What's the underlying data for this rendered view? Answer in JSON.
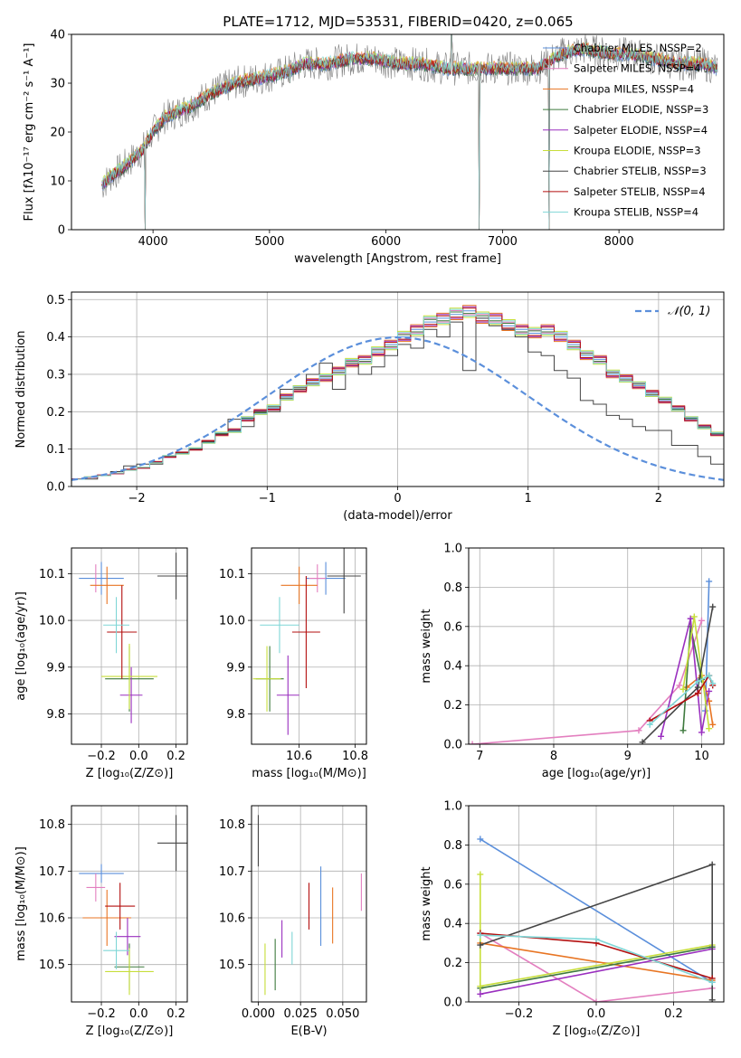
{
  "figure_title": "PLATE=1712, MJD=53531, FIBERID=0420, z=0.065",
  "colors": {
    "Chabrier MILES": "#5b8fdb",
    "Salpeter MILES": "#e37fbf",
    "Kroupa MILES": "#e87523",
    "Chabrier ELODIE": "#3e7a3e",
    "Salpeter ELODIE": "#9a2fbf",
    "Kroupa ELODIE": "#c7de3a",
    "Chabrier STELIB": "#454545",
    "Salpeter STELIB": "#b30f0f",
    "Kroupa STELIB": "#7fd6d6"
  },
  "chart_data": [
    {
      "id": "spectrum",
      "type": "line",
      "title": "PLATE=1712, MJD=53531, FIBERID=0420, z=0.065",
      "xlabel": "wavelength [Angstrom, rest frame]",
      "ylabel": "Flux [fλ10⁻¹⁷ erg cm⁻² s⁻¹ A⁻¹]",
      "xlim": [
        3300,
        8900
      ],
      "ylim": [
        0,
        40
      ],
      "xticks": [
        4000,
        5000,
        6000,
        7000,
        8000
      ],
      "yticks": [
        0,
        10,
        20,
        30,
        40
      ],
      "grid": false,
      "legend_position": "right",
      "legend": [
        "Chabrier MILES, N<sub>SSP</sub>=2",
        "Salpeter MILES, N<sub>SSP</sub>=4",
        "Kroupa MILES, N<sub>SSP</sub>=4",
        "Chabrier ELODIE, N<sub>SSP</sub>=3",
        "Salpeter ELODIE, N<sub>SSP</sub>=4",
        "Kroupa ELODIE, N<sub>SSP</sub>=3",
        "Chabrier STELIB, N<sub>SSP</sub>=3",
        "Salpeter STELIB, N<sub>SSP</sub>=4",
        "Kroupa STELIB, N<sub>SSP</sub>=4"
      ],
      "data_color": "#808080",
      "continuum": {
        "x": [
          3560,
          3640,
          3700,
          3800,
          3900,
          4000,
          4100,
          4200,
          4300,
          4500,
          4700,
          4900,
          5100,
          5300,
          5500,
          5700,
          5900,
          6100,
          6300,
          6500,
          6700,
          6900,
          7100,
          7300,
          7500,
          7700,
          7900,
          8100,
          8300,
          8500,
          8700,
          8850
        ],
        "y": [
          9,
          11,
          12,
          14,
          16,
          20,
          23,
          24,
          25,
          28,
          30,
          31,
          32,
          34,
          34,
          35,
          35,
          34,
          34,
          33,
          33,
          33,
          33,
          33,
          36,
          37,
          36,
          36,
          35,
          34,
          34,
          33
        ]
      },
      "features": [
        {
          "x": 3934,
          "y": 0
        },
        {
          "x": 5175,
          "y": 30
        },
        {
          "x": 6563,
          "y": 40
        },
        {
          "x": 6800,
          "y": 0
        },
        {
          "x": 7400,
          "y": 0
        }
      ]
    },
    {
      "id": "residuals",
      "type": "histogram",
      "xlabel": "(data-model)/error",
      "ylabel": "Normed distribution",
      "xlim": [
        -2.5,
        2.5
      ],
      "ylim": [
        0,
        0.52
      ],
      "xticks": [
        -2,
        -1,
        0,
        1,
        2
      ],
      "yticks": [
        0.0,
        0.1,
        0.2,
        0.3,
        0.4,
        0.5
      ],
      "tick_labels_x": [
        "−2",
        "−1",
        "0",
        "1",
        "2"
      ],
      "grid": true,
      "legend_position": "top-right",
      "legend": [
        "𝒩(0, 1)"
      ],
      "normal_curve": {
        "mean": 0,
        "sd": 1,
        "color": "#5b8fdb"
      },
      "bins": {
        "start": -2.5,
        "width": 0.1
      },
      "series_histograms": {
        "Chabrier MILES": [
          0.02,
          0.025,
          0.03,
          0.035,
          0.045,
          0.05,
          0.065,
          0.08,
          0.09,
          0.1,
          0.12,
          0.14,
          0.15,
          0.18,
          0.2,
          0.21,
          0.24,
          0.26,
          0.28,
          0.29,
          0.31,
          0.33,
          0.34,
          0.36,
          0.38,
          0.4,
          0.42,
          0.44,
          0.45,
          0.46,
          0.47,
          0.45,
          0.45,
          0.43,
          0.42,
          0.41,
          0.42,
          0.4,
          0.38,
          0.35,
          0.34,
          0.3,
          0.29,
          0.27,
          0.25,
          0.23,
          0.21,
          0.18,
          0.16,
          0.14,
          0.12,
          0.11,
          0.09,
          0.08,
          0.07,
          0.06,
          0.05,
          0.04,
          0.03,
          0.03
        ],
        "Chabrier STELIB": [
          0.02,
          0.02,
          0.03,
          0.04,
          0.055,
          0.06,
          0.06,
          0.08,
          0.09,
          0.1,
          0.12,
          0.14,
          0.18,
          0.16,
          0.2,
          0.2,
          0.26,
          0.26,
          0.3,
          0.33,
          0.26,
          0.33,
          0.3,
          0.32,
          0.35,
          0.38,
          0.37,
          0.42,
          0.4,
          0.44,
          0.31,
          0.45,
          0.43,
          0.42,
          0.4,
          0.36,
          0.35,
          0.31,
          0.29,
          0.23,
          0.22,
          0.19,
          0.18,
          0.16,
          0.15,
          0.15,
          0.11,
          0.11,
          0.08,
          0.06,
          0.06,
          0.05,
          0.04,
          0.03,
          0.03,
          0.03,
          0.03,
          0.02,
          0.02,
          0.02
        ]
      },
      "series_shift": {
        "Salpeter MILES": 0.015,
        "Kroupa MILES": -0.02,
        "Chabrier ELODIE": 0.01,
        "Salpeter ELODIE": -0.015,
        "Kroupa ELODIE": 0.025,
        "Salpeter STELIB": -0.01,
        "Kroupa STELIB": 0.02
      }
    },
    {
      "id": "age-vs-Z",
      "type": "scatter-errorbars",
      "xlabel": "Z [log₁₀(Z/Z⊙)]",
      "ylabel": "age  [log₁₀(age/yr)]",
      "xlim": [
        -0.36,
        0.26
      ],
      "ylim": [
        9.735,
        10.155
      ],
      "xticks": [
        -0.2,
        0.0,
        0.2
      ],
      "tick_labels_x": [
        "−0.2",
        "0.0",
        "0.2"
      ],
      "yticks": [
        9.8,
        9.9,
        10.0,
        10.1
      ],
      "grid": true,
      "points": [
        {
          "s": "Chabrier MILES",
          "x": -0.2,
          "y": 10.09,
          "xerr": 0.12,
          "yerr": 0.035
        },
        {
          "s": "Salpeter MILES",
          "x": -0.23,
          "y": 10.09,
          "xerr": 0.0,
          "yerr": 0.03
        },
        {
          "s": "Kroupa MILES",
          "x": -0.17,
          "y": 10.075,
          "xerr": 0.09,
          "yerr": 0.04
        },
        {
          "s": "Chabrier ELODIE",
          "x": -0.05,
          "y": 9.875,
          "xerr": 0.13,
          "yerr": 0.07
        },
        {
          "s": "Salpeter ELODIE",
          "x": -0.04,
          "y": 9.84,
          "xerr": 0.06,
          "yerr": 0.06
        },
        {
          "s": "Kroupa ELODIE",
          "x": -0.05,
          "y": 9.88,
          "xerr": 0.15,
          "yerr": 0.07
        },
        {
          "s": "Chabrier STELIB",
          "x": 0.2,
          "y": 10.095,
          "xerr": 0.1,
          "yerr": 0.05
        },
        {
          "s": "Salpeter STELIB",
          "x": -0.09,
          "y": 9.975,
          "xerr": 0.08,
          "yerr": 0.1
        },
        {
          "s": "Kroupa STELIB",
          "x": -0.12,
          "y": 9.99,
          "xerr": 0.07,
          "yerr": 0.06
        }
      ]
    },
    {
      "id": "age-vs-mass",
      "type": "scatter-errorbars",
      "xlabel": "mass [log₁₀(M/M⊙)]",
      "ylabel": "",
      "xlim": [
        10.43,
        10.84
      ],
      "ylim": [
        9.735,
        10.155
      ],
      "xticks": [
        10.6,
        10.8
      ],
      "yticks": [
        9.8,
        9.9,
        10.0,
        10.1
      ],
      "grid": true,
      "points": [
        {
          "s": "Chabrier MILES",
          "x": 10.695,
          "y": 10.09,
          "xerr": 0.07,
          "yerr": 0.035
        },
        {
          "s": "Salpeter MILES",
          "x": 10.665,
          "y": 10.09,
          "xerr": 0.03,
          "yerr": 0.03
        },
        {
          "s": "Kroupa MILES",
          "x": 10.6,
          "y": 10.075,
          "xerr": 0.065,
          "yerr": 0.04
        },
        {
          "s": "Chabrier ELODIE",
          "x": 10.495,
          "y": 9.875,
          "xerr": 0.05,
          "yerr": 0.07
        },
        {
          "s": "Salpeter ELODIE",
          "x": 10.56,
          "y": 9.84,
          "xerr": 0.04,
          "yerr": 0.085
        },
        {
          "s": "Kroupa ELODIE",
          "x": 10.485,
          "y": 9.875,
          "xerr": 0.05,
          "yerr": 0.07
        },
        {
          "s": "Chabrier STELIB",
          "x": 10.76,
          "y": 10.095,
          "xerr": 0.06,
          "yerr": 0.08
        },
        {
          "s": "Salpeter STELIB",
          "x": 10.625,
          "y": 9.975,
          "xerr": 0.05,
          "yerr": 0.12
        },
        {
          "s": "Kroupa STELIB",
          "x": 10.53,
          "y": 9.99,
          "xerr": 0.07,
          "yerr": 0.06
        }
      ]
    },
    {
      "id": "massweight-vs-age",
      "type": "line",
      "xlabel": "age  [log₁₀(age/yr)]",
      "ylabel": "mass weight",
      "xlim": [
        6.85,
        10.3
      ],
      "ylim": [
        0,
        1
      ],
      "xticks": [
        7,
        8,
        9,
        10
      ],
      "yticks": [
        0.0,
        0.2,
        0.4,
        0.6,
        0.8,
        1.0
      ],
      "grid": true,
      "series": [
        {
          "name": "Chabrier MILES",
          "x": [
            10.05,
            10.1
          ],
          "y": [
            0.17,
            0.83
          ]
        },
        {
          "name": "Salpeter MILES",
          "x": [
            6.9,
            9.15,
            9.7,
            10.0
          ],
          "y": [
            0.0,
            0.07,
            0.3,
            0.63
          ]
        },
        {
          "name": "Kroupa MILES",
          "x": [
            9.8,
            10.0,
            10.1,
            10.15
          ],
          "y": [
            0.29,
            0.35,
            0.22,
            0.1
          ]
        },
        {
          "name": "Chabrier ELODIE",
          "x": [
            9.75,
            9.85,
            10.0
          ],
          "y": [
            0.07,
            0.6,
            0.33
          ]
        },
        {
          "name": "Salpeter ELODIE",
          "x": [
            9.45,
            9.85,
            10.0,
            10.1
          ],
          "y": [
            0.04,
            0.64,
            0.06,
            0.27
          ]
        },
        {
          "name": "Kroupa ELODIE",
          "x": [
            9.75,
            9.9,
            10.1
          ],
          "y": [
            0.28,
            0.65,
            0.08
          ]
        },
        {
          "name": "Chabrier STELIB",
          "x": [
            9.2,
            9.95,
            10.15
          ],
          "y": [
            0.01,
            0.29,
            0.7
          ]
        },
        {
          "name": "Salpeter STELIB",
          "x": [
            9.3,
            9.95,
            10.1,
            10.15
          ],
          "y": [
            0.12,
            0.26,
            0.35,
            0.3
          ]
        },
        {
          "name": "Kroupa STELIB",
          "x": [
            9.3,
            9.95,
            10.1,
            10.15
          ],
          "y": [
            0.1,
            0.32,
            0.35,
            0.31
          ]
        }
      ]
    },
    {
      "id": "mass-vs-Z",
      "type": "scatter-errorbars",
      "xlabel": "Z [log₁₀(Z/Z⊙)]",
      "ylabel": "mass [log₁₀(M/M⊙)]",
      "xlim": [
        -0.36,
        0.26
      ],
      "ylim": [
        10.42,
        10.84
      ],
      "xticks": [
        -0.2,
        0.0,
        0.2
      ],
      "tick_labels_x": [
        "−0.2",
        "0.0",
        "0.2"
      ],
      "yticks": [
        10.5,
        10.6,
        10.7,
        10.8
      ],
      "grid": true,
      "points": [
        {
          "s": "Chabrier MILES",
          "x": -0.2,
          "y": 10.695,
          "xerr": 0.12,
          "yerr": 0.02
        },
        {
          "s": "Salpeter MILES",
          "x": -0.23,
          "y": 10.665,
          "xerr": 0.05,
          "yerr": 0.03
        },
        {
          "s": "Kroupa MILES",
          "x": -0.17,
          "y": 10.6,
          "xerr": 0.13,
          "yerr": 0.06
        },
        {
          "s": "Chabrier ELODIE",
          "x": -0.05,
          "y": 10.495,
          "xerr": 0.08,
          "yerr": 0.05
        },
        {
          "s": "Salpeter ELODIE",
          "x": -0.06,
          "y": 10.56,
          "xerr": 0.07,
          "yerr": 0.04
        },
        {
          "s": "Kroupa ELODIE",
          "x": -0.05,
          "y": 10.485,
          "xerr": 0.13,
          "yerr": 0.05
        },
        {
          "s": "Chabrier STELIB",
          "x": 0.2,
          "y": 10.76,
          "xerr": 0.1,
          "yerr": 0.06
        },
        {
          "s": "Salpeter STELIB",
          "x": -0.1,
          "y": 10.625,
          "xerr": 0.08,
          "yerr": 0.05
        },
        {
          "s": "Kroupa STELIB",
          "x": -0.12,
          "y": 10.53,
          "xerr": 0.07,
          "yerr": 0.04
        }
      ]
    },
    {
      "id": "mass-vs-ebv",
      "type": "scatter-errorbars",
      "xlabel": "E(B-V)",
      "ylabel": "",
      "xlim": [
        -0.004,
        0.064
      ],
      "ylim": [
        10.42,
        10.84
      ],
      "xticks": [
        0.0,
        0.025,
        0.05
      ],
      "tick_labels_x": [
        "0.000",
        "0.025",
        "0.050"
      ],
      "yticks": [
        10.5,
        10.6,
        10.7,
        10.8
      ],
      "grid": true,
      "points": [
        {
          "s": "Chabrier STELIB",
          "x": 0.0,
          "y": 10.765,
          "xerr": 0,
          "yerr": 0.055
        },
        {
          "s": "Kroupa ELODIE",
          "x": 0.004,
          "y": 10.49,
          "xerr": 0,
          "yerr": 0.055
        },
        {
          "s": "Chabrier ELODIE",
          "x": 0.01,
          "y": 10.5,
          "xerr": 0,
          "yerr": 0.055
        },
        {
          "s": "Salpeter ELODIE",
          "x": 0.014,
          "y": 10.555,
          "xerr": 0,
          "yerr": 0.04
        },
        {
          "s": "Kroupa STELIB",
          "x": 0.02,
          "y": 10.535,
          "xerr": 0,
          "yerr": 0.035
        },
        {
          "s": "Salpeter STELIB",
          "x": 0.03,
          "y": 10.625,
          "xerr": 0,
          "yerr": 0.05
        },
        {
          "s": "Chabrier MILES",
          "x": 0.037,
          "y": 10.625,
          "xerr": 0,
          "yerr": 0.085
        },
        {
          "s": "Kroupa MILES",
          "x": 0.044,
          "y": 10.605,
          "xerr": 0,
          "yerr": 0.06
        },
        {
          "s": "Salpeter MILES",
          "x": 0.061,
          "y": 10.655,
          "xerr": 0,
          "yerr": 0.04
        }
      ]
    },
    {
      "id": "massweight-vs-Z",
      "type": "line",
      "xlabel": "Z [log₁₀(Z/Z⊙)]",
      "ylabel": "mass weight",
      "xlim": [
        -0.33,
        0.33
      ],
      "ylim": [
        0,
        1
      ],
      "xticks": [
        -0.2,
        0.0,
        0.2
      ],
      "tick_labels_x": [
        "−0.2",
        "0.0",
        "0.2"
      ],
      "yticks": [
        0.0,
        0.2,
        0.4,
        0.6,
        0.8,
        1.0
      ],
      "grid": true,
      "series": [
        {
          "name": "Chabrier MILES",
          "x": [
            -0.3,
            0.3
          ],
          "y": [
            0.83,
            0.1
          ]
        },
        {
          "name": "Salpeter MILES",
          "x": [
            -0.3,
            0.0,
            0.3
          ],
          "y": [
            0.35,
            0.0,
            0.07
          ]
        },
        {
          "name": "Kroupa MILES",
          "x": [
            -0.3,
            0.3
          ],
          "y": [
            0.3,
            0.11
          ]
        },
        {
          "name": "Chabrier ELODIE",
          "x": [
            -0.3,
            0.3
          ],
          "y": [
            0.07,
            0.28
          ]
        },
        {
          "name": "Salpeter ELODIE",
          "x": [
            -0.3,
            0.3
          ],
          "y": [
            0.04,
            0.27
          ]
        },
        {
          "name": "Kroupa ELODIE",
          "x": [
            -0.3,
            -0.3,
            0.3
          ],
          "y": [
            0.65,
            0.08,
            0.29
          ]
        },
        {
          "name": "Chabrier STELIB",
          "x": [
            -0.3,
            0.3,
            0.3
          ],
          "y": [
            0.29,
            0.7,
            0.01
          ]
        },
        {
          "name": "Salpeter STELIB",
          "x": [
            -0.3,
            0.0,
            0.3
          ],
          "y": [
            0.35,
            0.3,
            0.12
          ]
        },
        {
          "name": "Kroupa STELIB",
          "x": [
            -0.3,
            0.0,
            0.3
          ],
          "y": [
            0.34,
            0.32,
            0.1
          ]
        }
      ]
    }
  ]
}
